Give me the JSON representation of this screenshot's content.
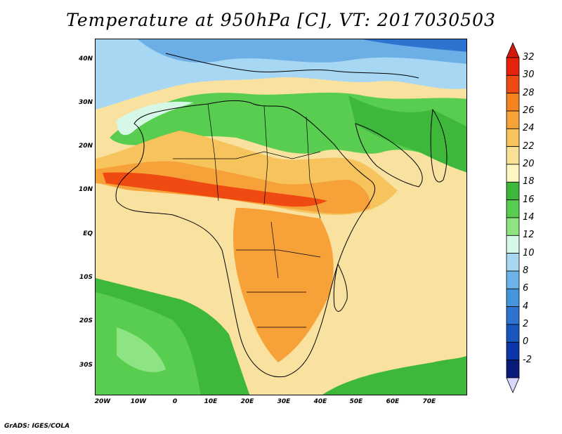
{
  "title": "Temperature at 950hPa [C], VT: 2017030503",
  "credit": "GrADS: IGES/COLA",
  "lat_labels": [
    "40N",
    "30N",
    "20N",
    "10N",
    "EQ",
    "10S",
    "20S",
    "30S"
  ],
  "lon_labels": [
    "20W",
    "10W",
    "0",
    "10E",
    "20E",
    "30E",
    "40E",
    "50E",
    "60E",
    "70E"
  ],
  "colorbar": {
    "labels": [
      "32",
      "30",
      "28",
      "26",
      "24",
      "22",
      "20",
      "18",
      "16",
      "14",
      "12",
      "10",
      "8",
      "6",
      "4",
      "2",
      "0",
      "-2"
    ],
    "colors": [
      "#e8220a",
      "#ee4a12",
      "#f5841e",
      "#f7a139",
      "#f6c35c",
      "#f8e196",
      "#fff6c2",
      "#3db83a",
      "#58cd4f",
      "#8ee382",
      "#d6f8e6",
      "#a8d7f4",
      "#6cb3ea",
      "#4395de",
      "#2d74d0",
      "#1956c0",
      "#0b37ab",
      "#081a7a"
    ],
    "top_arrow_color": "#d4180a",
    "bottom_arrow_color": "#d7d7ff"
  },
  "map": {
    "projection": "latlon",
    "lon_range": [
      -24,
      80
    ],
    "lat_range": [
      -37,
      45
    ],
    "ocean_color": "#f9e2a0",
    "desert_green": "#4cc449",
    "cold_blue": "#6caee6"
  }
}
